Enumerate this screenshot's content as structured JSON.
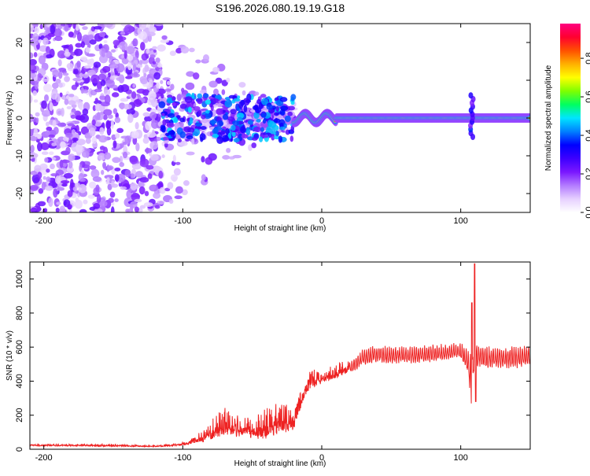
{
  "chart_data": [
    {
      "type": "heatmap",
      "title": "S196.2026.080.19.19.G18",
      "xlabel": "Height of straight line (km)",
      "ylabel": "Frequency (Hz)",
      "xlim": [
        -210,
        150
      ],
      "ylim": [
        -25,
        25
      ],
      "xticks": [
        -200,
        -100,
        0,
        100
      ],
      "yticks": [
        -20,
        -10,
        0,
        10,
        20
      ],
      "colorbar": {
        "label": "Normalized spectral amplitude",
        "range": [
          0,
          0.98
        ],
        "ticks": [
          0.0,
          0.2,
          0.4,
          0.6,
          0.8
        ],
        "colors": [
          "#ffffff",
          "#e6d0ff",
          "#b37bff",
          "#7a17ff",
          "#3d00ff",
          "#0000ff",
          "#0080ff",
          "#00e5ff",
          "#00ff60",
          "#7fff00",
          "#ffff00",
          "#ffb000",
          "#ff5000",
          "#ff0030",
          "#ff0080"
        ]
      },
      "features": {
        "noise_region_x": [
          -210,
          -115
        ],
        "scatter_region_x": [
          -115,
          -20
        ],
        "signal_line_x": [
          -20,
          150
        ],
        "signal_frequency": 0,
        "glitch_x": 108
      }
    },
    {
      "type": "line",
      "xlabel": "Height of straight line (km)",
      "ylabel": "SNR (10 * v/v)",
      "xlim": [
        -210,
        150
      ],
      "ylim": [
        0,
        1100
      ],
      "xticks": [
        -200,
        -100,
        0,
        100
      ],
      "yticks": [
        0,
        200,
        400,
        600,
        800,
        1000
      ],
      "color": "#ee2222",
      "envelope": {
        "x": [
          -210,
          -180,
          -150,
          -120,
          -110,
          -100,
          -90,
          -80,
          -70,
          -60,
          -50,
          -40,
          -30,
          -25,
          -20,
          -15,
          -10,
          -5,
          0,
          10,
          20,
          30,
          40,
          50,
          60,
          70,
          80,
          90,
          100,
          105,
          108,
          110,
          112,
          120,
          130,
          140,
          150
        ],
        "base": [
          20,
          20,
          18,
          15,
          18,
          25,
          40,
          60,
          90,
          80,
          75,
          80,
          100,
          110,
          130,
          250,
          350,
          380,
          390,
          420,
          460,
          520,
          540,
          530,
          530,
          535,
          540,
          545,
          560,
          480,
          330,
          560,
          520,
          510,
          510,
          510,
          520
        ],
        "amp": [
          10,
          15,
          15,
          10,
          15,
          25,
          50,
          150,
          200,
          150,
          150,
          200,
          230,
          200,
          140,
          150,
          160,
          120,
          100,
          100,
          110,
          130,
          140,
          140,
          140,
          140,
          140,
          140,
          130,
          200,
          500,
          150,
          180,
          180,
          180,
          180,
          180
        ]
      }
    }
  ]
}
